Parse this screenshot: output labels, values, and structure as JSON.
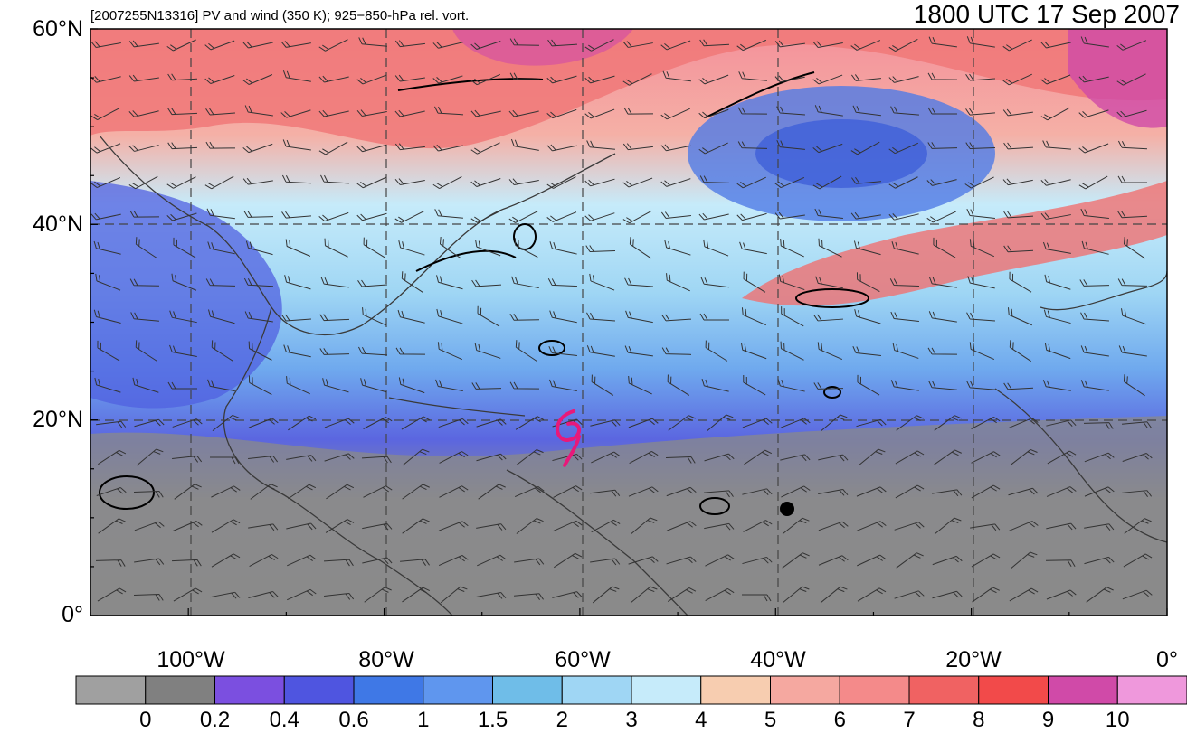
{
  "subtitle": "[2007255N13316] PV and wind (350 K); 925−850-hPa rel. vort.",
  "datetime": "1800 UTC 17 Sep 2007",
  "lat_labels": [
    "60°N",
    "40°N",
    "20°N",
    "0°"
  ],
  "lon_labels": [
    "100°W",
    "80°W",
    "60°W",
    "40°W",
    "20°W",
    "0°"
  ],
  "colorbar": {
    "labels": [
      "0",
      "0.2",
      "0.4",
      "0.6",
      "1",
      "1.5",
      "2",
      "3",
      "4",
      "5",
      "6",
      "7",
      "8",
      "9",
      "10"
    ],
    "colors": [
      "#a0a0a0",
      "#808080",
      "#7b4fe0",
      "#4f55e0",
      "#3f78e6",
      "#5f96ee",
      "#6fbde8",
      "#9fd6f4",
      "#c6ebfa",
      "#f7cdb0",
      "#f5a8a0",
      "#f48a8a",
      "#f06262",
      "#f24a4a",
      "#d04aa8",
      "#ef98dc"
    ]
  },
  "map": {
    "lat_range": [
      0,
      60
    ],
    "lon_range": [
      -110,
      0
    ],
    "grid_lats": [
      0,
      20,
      40,
      60
    ],
    "grid_lons": [
      -100,
      -80,
      -60,
      -40,
      -20,
      0
    ],
    "storm_symbol_lon": -61,
    "storm_symbol_lat": 18.5,
    "storm_symbol_color": "#e8197a"
  }
}
